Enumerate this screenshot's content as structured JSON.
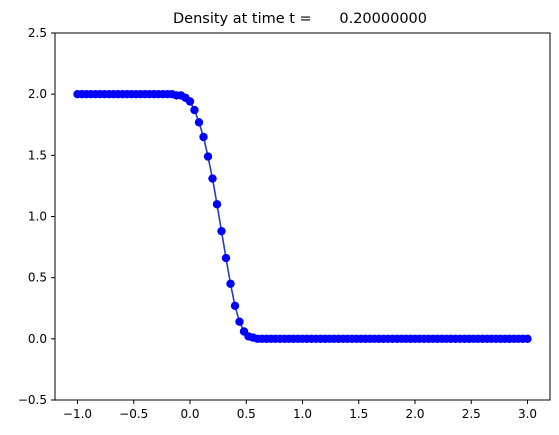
{
  "chart_data": {
    "type": "line",
    "title": "Density at time t =      0.20000000",
    "xlabel": "",
    "ylabel": "",
    "xlim": [
      -1.2,
      3.2
    ],
    "ylim": [
      -0.5,
      2.5
    ],
    "x_ticks": [
      -1.0,
      -0.5,
      0.0,
      0.5,
      1.0,
      1.5,
      2.0,
      2.5,
      3.0
    ],
    "x_tick_labels": [
      "−1.0",
      "−0.5",
      "0.0",
      "0.5",
      "1.0",
      "1.5",
      "2.0",
      "2.5",
      "3.0"
    ],
    "y_ticks": [
      -0.5,
      0.0,
      0.5,
      1.0,
      1.5,
      2.0,
      2.5
    ],
    "y_tick_labels": [
      "−0.5",
      "0.0",
      "0.5",
      "1.0",
      "1.5",
      "2.0",
      "2.5"
    ],
    "grid": false,
    "series": [
      {
        "line_color": "#1f3fbf",
        "marker_color": "#0000ff",
        "marker": "circle",
        "x": [
          -1.0,
          -0.96,
          -0.92,
          -0.88,
          -0.84,
          -0.8,
          -0.76,
          -0.72,
          -0.68,
          -0.64,
          -0.6,
          -0.56,
          -0.52,
          -0.48,
          -0.44,
          -0.4,
          -0.36,
          -0.32,
          -0.28,
          -0.24,
          -0.2,
          -0.16,
          -0.12,
          -0.08,
          -0.04,
          0.0,
          0.04,
          0.08,
          0.12,
          0.16,
          0.2,
          0.24,
          0.28,
          0.32,
          0.36,
          0.4,
          0.44,
          0.48,
          0.52,
          0.56,
          0.6,
          0.64,
          0.68,
          0.72,
          0.76,
          0.8,
          0.84,
          0.88,
          0.92,
          0.96,
          1.0,
          1.04,
          1.08,
          1.12,
          1.16,
          1.2,
          1.24,
          1.28,
          1.32,
          1.36,
          1.4,
          1.44,
          1.48,
          1.52,
          1.56,
          1.6,
          1.64,
          1.68,
          1.72,
          1.76,
          1.8,
          1.84,
          1.88,
          1.92,
          1.96,
          2.0,
          2.04,
          2.08,
          2.12,
          2.16,
          2.2,
          2.24,
          2.28,
          2.32,
          2.36,
          2.4,
          2.44,
          2.48,
          2.52,
          2.56,
          2.6,
          2.64,
          2.68,
          2.72,
          2.76,
          2.8,
          2.84,
          2.88,
          2.92,
          2.96,
          3.0
        ],
        "y": [
          2.0,
          2.0,
          2.0,
          2.0,
          2.0,
          2.0,
          2.0,
          2.0,
          2.0,
          2.0,
          2.0,
          2.0,
          2.0,
          2.0,
          2.0,
          2.0,
          2.0,
          2.0,
          2.0,
          2.0,
          2.0,
          2.0,
          1.99,
          1.99,
          1.97,
          1.94,
          1.87,
          1.77,
          1.65,
          1.49,
          1.31,
          1.1,
          0.88,
          0.66,
          0.45,
          0.27,
          0.14,
          0.06,
          0.02,
          0.01,
          0.0,
          0.0,
          0.0,
          0.0,
          0.0,
          0.0,
          0.0,
          0.0,
          0.0,
          0.0,
          0.0,
          0.0,
          0.0,
          0.0,
          0.0,
          0.0,
          0.0,
          0.0,
          0.0,
          0.0,
          0.0,
          0.0,
          0.0,
          0.0,
          0.0,
          0.0,
          0.0,
          0.0,
          0.0,
          0.0,
          0.0,
          0.0,
          0.0,
          0.0,
          0.0,
          0.0,
          0.0,
          0.0,
          0.0,
          0.0,
          0.0,
          0.0,
          0.0,
          0.0,
          0.0,
          0.0,
          0.0,
          0.0,
          0.0,
          0.0,
          0.0,
          0.0,
          0.0,
          0.0,
          0.0,
          0.0,
          0.0,
          0.0,
          0.0,
          0.0,
          0.0
        ]
      }
    ]
  }
}
